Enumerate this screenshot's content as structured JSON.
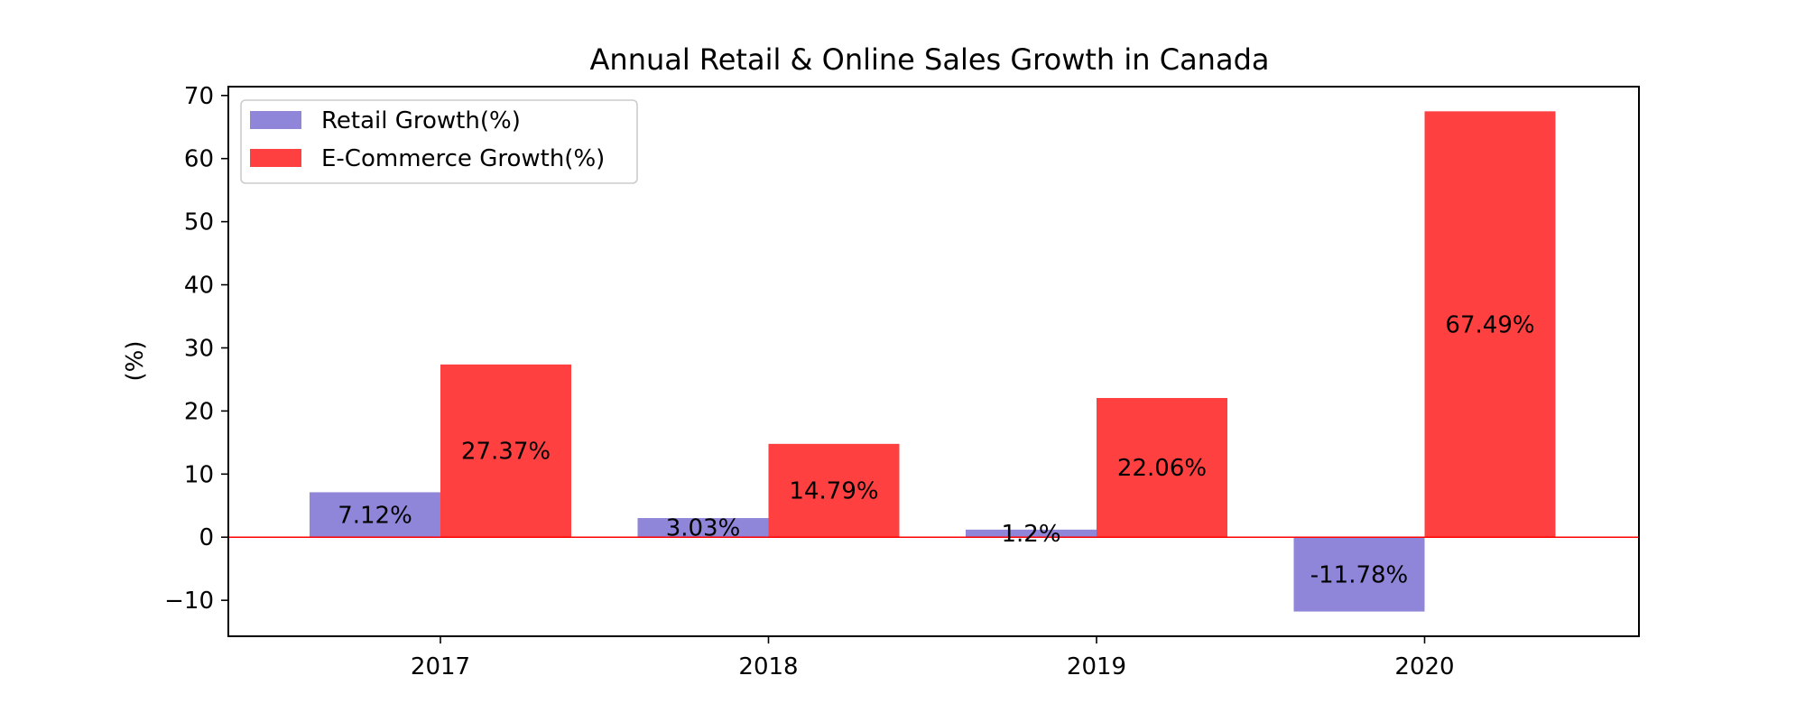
{
  "chart_data": {
    "type": "bar",
    "title": "Annual Retail & Online Sales Growth in Canada",
    "xlabel": "",
    "ylabel": "(%)",
    "categories": [
      "2017",
      "2018",
      "2019",
      "2020"
    ],
    "series": [
      {
        "name": "Retail Growth(%)",
        "values": [
          7.12,
          3.03,
          1.2,
          -11.78
        ],
        "labels": [
          "7.12%",
          "3.03%",
          "1.2%",
          "-11.78%"
        ],
        "color": "#8f86d9"
      },
      {
        "name": "E-Commerce Growth(%)",
        "values": [
          27.37,
          14.79,
          22.06,
          67.49
        ],
        "labels": [
          "27.37%",
          "14.79%",
          "22.06%",
          "67.49%"
        ],
        "color": "#ff4040"
      }
    ],
    "ylim": [
      -15.7,
      71.4
    ],
    "yticks": [
      -10,
      0,
      10,
      20,
      30,
      40,
      50,
      60,
      70
    ],
    "ytick_labels": [
      "−10",
      "0",
      "10",
      "20",
      "30",
      "40",
      "50",
      "60",
      "70"
    ],
    "zero_line_color": "#ff0000",
    "grid": false,
    "legend_position": "top-left"
  }
}
